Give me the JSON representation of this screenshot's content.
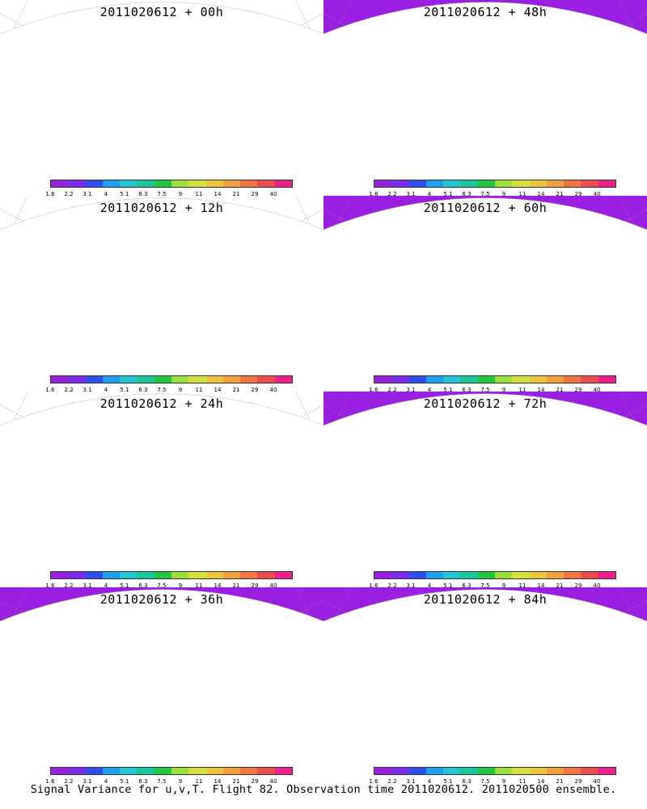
{
  "panels": [
    {
      "title": "2011020612 + 00h",
      "intensity": 0
    },
    {
      "title": "2011020612 + 48h",
      "intensity": 4
    },
    {
      "title": "2011020612 + 12h",
      "intensity": 1
    },
    {
      "title": "2011020612 + 60h",
      "intensity": 5
    },
    {
      "title": "2011020612 + 24h",
      "intensity": 2
    },
    {
      "title": "2011020612 + 72h",
      "intensity": 6
    },
    {
      "title": "2011020612 + 36h",
      "intensity": 3
    },
    {
      "title": "2011020612 + 84h",
      "intensity": 7
    }
  ],
  "colorbar": {
    "labels": [
      "1.6",
      "2.2",
      "3.1",
      "4",
      "5.1",
      "6.3",
      "7.5",
      "9",
      "11",
      "14",
      "21",
      "29",
      "40"
    ],
    "colors": [
      "#9b1fe0",
      "#7c2cf0",
      "#2f4df5",
      "#1e9ef2",
      "#22c6d6",
      "#18c79c",
      "#22c940",
      "#9be03a",
      "#d6e23c",
      "#f0c43a",
      "#f2a03c",
      "#f27440",
      "#f04a4a",
      "#ee1e8c"
    ]
  },
  "caption": "Signal Variance for u,v,T. Flight 82. Observation time 2011020612. 2011020500 ensemble."
}
